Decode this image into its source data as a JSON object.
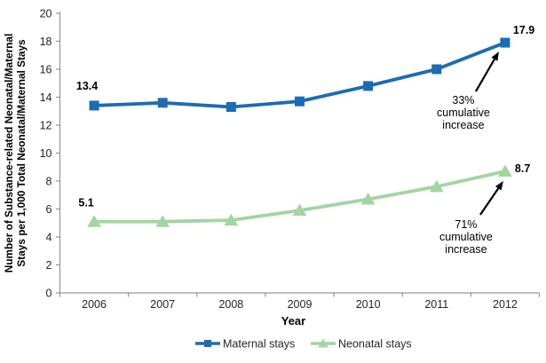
{
  "chart_data": {
    "type": "line",
    "title": "",
    "xlabel": "Year",
    "ylabel": "Number of Substance-related Neonatal/Maternal Stays per 1,000 Total Neonatal/Maternal Stays",
    "ylabel_lines": [
      "Number of Substance-related  Neonatal/Maternal",
      "Stays per 1,000 Total Neonatal/Maternal  Stays"
    ],
    "categories": [
      "2006",
      "2007",
      "2008",
      "2009",
      "2010",
      "2011",
      "2012"
    ],
    "y_axis": {
      "min": 0,
      "max": 20,
      "tick_step": 2,
      "tick_labels": [
        "0",
        "2",
        "4",
        "6",
        "8",
        "10",
        "12",
        "14",
        "16",
        "18",
        "20"
      ]
    },
    "series": [
      {
        "name": "Maternal stays",
        "marker": "square",
        "color": "#1c6cb4",
        "values": [
          13.4,
          13.6,
          13.3,
          13.7,
          14.8,
          16.0,
          17.9
        ],
        "first_point_label": "13.4",
        "last_point_label": "17.9"
      },
      {
        "name": "Neonatal stays",
        "marker": "triangle",
        "color": "#a2d5a2",
        "values": [
          5.1,
          5.1,
          5.2,
          5.9,
          6.7,
          7.6,
          8.7
        ],
        "first_point_label": "5.1",
        "last_point_label": "8.7"
      }
    ],
    "annotations": [
      {
        "target_series": "Maternal stays",
        "lines": [
          "33%",
          "cumulative",
          "increase"
        ],
        "text": "33% cumulative increase"
      },
      {
        "target_series": "Neonatal stays",
        "lines": [
          "71%",
          "cumulative",
          "increase"
        ],
        "text": "71% cumulative increase"
      }
    ],
    "legend": {
      "position": "bottom",
      "entries": [
        "Maternal stays",
        "Neonatal stays"
      ]
    },
    "grid": false,
    "background_color": "#ffffff",
    "axis_color": "#969696",
    "tick_text_color": "#262626",
    "text_color": "#000000",
    "annotation_arrow_color": "#000000"
  }
}
